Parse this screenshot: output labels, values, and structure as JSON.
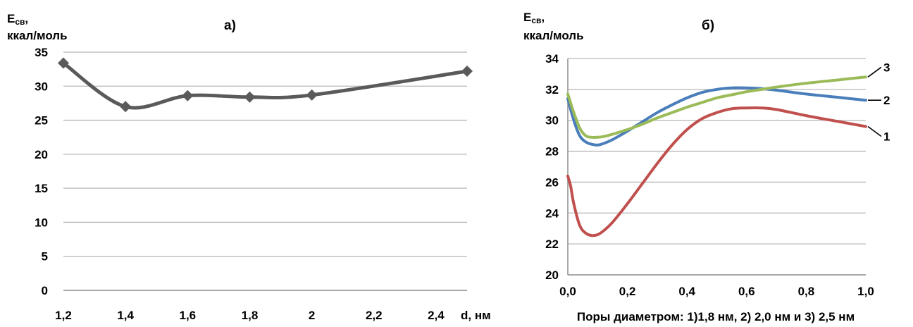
{
  "chart_data": [
    {
      "type": "line",
      "panel_label": "а)",
      "ylabel_main": "E",
      "ylabel_sub": "св",
      "ylabel_comma": ",",
      "ylabel_unit": "ккал/моль",
      "xlabel": "d, нм",
      "x_ticks": [
        "1,2",
        "1,4",
        "1,6",
        "1,8",
        "2",
        "2,2",
        "2,4"
      ],
      "xlim": [
        1.2,
        2.5
      ],
      "ylim": [
        0,
        35
      ],
      "y_ticks": [
        0,
        5,
        10,
        15,
        20,
        25,
        30,
        35
      ],
      "grid": true,
      "marker": "diamond",
      "color": "#5a5a5a",
      "series": [
        {
          "x": [
            1.2,
            1.4,
            1.6,
            1.8,
            2.0,
            2.5
          ],
          "values": [
            33.4,
            27.0,
            28.6,
            28.4,
            28.7,
            32.2
          ]
        }
      ]
    },
    {
      "type": "line",
      "panel_label": "б)",
      "ylabel_main": "E",
      "ylabel_sub": "св",
      "ylabel_comma": ",",
      "ylabel_unit": "ккал/моль",
      "xlabel": "Поры диаметром: 1)1,8 нм, 2) 2,0 нм и 3) 2,5 нм",
      "x_ticks": [
        "0,0",
        "0,2",
        "0,4",
        "0,6",
        "0,8",
        "1,0"
      ],
      "xlim": [
        0,
        1.0
      ],
      "ylim": [
        20,
        34
      ],
      "y_ticks": [
        20,
        22,
        24,
        26,
        28,
        30,
        32,
        34
      ],
      "grid": true,
      "series": [
        {
          "name": "1",
          "color": "#c0504d",
          "x": [
            0,
            0.01,
            0.02,
            0.04,
            0.06,
            0.08,
            0.1,
            0.12,
            0.15,
            0.2,
            0.25,
            0.3,
            0.35,
            0.4,
            0.45,
            0.5,
            0.55,
            0.6,
            0.65,
            0.7,
            0.8,
            0.9,
            1.0
          ],
          "values": [
            26.4,
            25.7,
            24.6,
            23.2,
            22.7,
            22.55,
            22.6,
            22.85,
            23.4,
            24.6,
            25.9,
            27.2,
            28.4,
            29.4,
            30.1,
            30.5,
            30.75,
            30.8,
            30.8,
            30.7,
            30.3,
            29.95,
            29.6
          ]
        },
        {
          "name": "2",
          "color": "#4a7ebb",
          "x": [
            0,
            0.02,
            0.04,
            0.06,
            0.08,
            0.1,
            0.12,
            0.15,
            0.2,
            0.25,
            0.3,
            0.35,
            0.4,
            0.45,
            0.5,
            0.55,
            0.6,
            0.65,
            0.7,
            0.8,
            0.9,
            1.0
          ],
          "values": [
            31.4,
            30.0,
            29.0,
            28.6,
            28.45,
            28.4,
            28.5,
            28.75,
            29.3,
            29.9,
            30.5,
            31.0,
            31.45,
            31.8,
            32.0,
            32.1,
            32.1,
            32.05,
            31.95,
            31.7,
            31.5,
            31.3
          ]
        },
        {
          "name": "3",
          "color": "#9bbb59",
          "x": [
            0,
            0.02,
            0.04,
            0.06,
            0.08,
            0.1,
            0.12,
            0.15,
            0.2,
            0.25,
            0.3,
            0.35,
            0.4,
            0.45,
            0.5,
            0.55,
            0.6,
            0.65,
            0.7,
            0.8,
            0.9,
            1.0
          ],
          "values": [
            31.7,
            30.5,
            29.5,
            29.0,
            28.9,
            28.9,
            28.95,
            29.1,
            29.4,
            29.75,
            30.15,
            30.5,
            30.85,
            31.15,
            31.45,
            31.65,
            31.85,
            32.0,
            32.15,
            32.4,
            32.6,
            32.8
          ]
        }
      ]
    }
  ]
}
